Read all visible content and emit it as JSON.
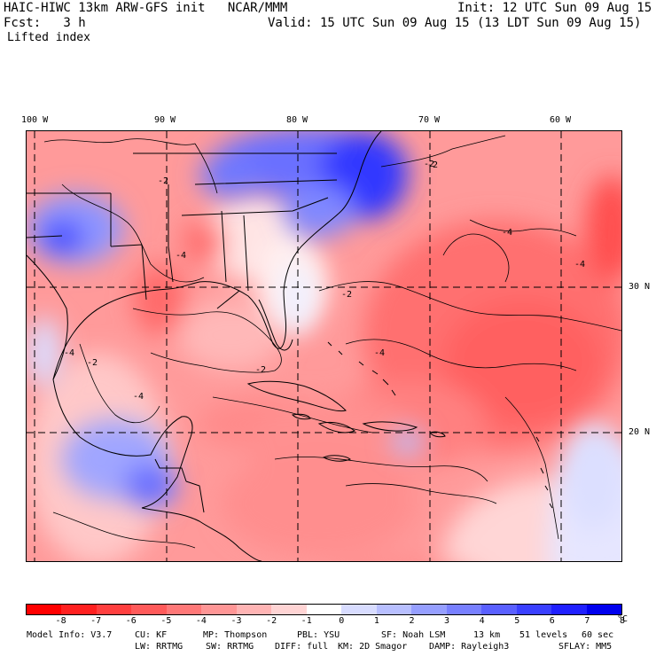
{
  "header": {
    "title_left": "HAIC-HIWC 13km ARW-GFS init   NCAR/MMM",
    "init": "Init: 12 UTC Sun 09 Aug 15",
    "fcst": "Fcst:   3 h",
    "valid": "Valid: 15 UTC Sun 09 Aug 15 (13 LDT Sun 09 Aug 15)",
    "field": "Lifted index"
  },
  "longitude_labels": [
    "100 W",
    "90 W",
    "80 W",
    "70 W",
    "60 W"
  ],
  "latitude_labels": [
    "30 N",
    "20 N"
  ],
  "contour_labels": [
    "-2",
    "-4",
    "-2",
    "-4",
    "-2",
    "-2",
    "-4",
    "-4",
    "-2",
    "-4",
    "-2",
    "-4"
  ],
  "colorbar": {
    "labels": [
      "-8",
      "-7",
      "-6",
      "-5",
      "-4",
      "-3",
      "-2",
      "-1",
      "0",
      "1",
      "2",
      "3",
      "4",
      "5",
      "6",
      "7",
      "8"
    ],
    "unit": "°C",
    "colors": [
      "#ff0000",
      "#ff2020",
      "#ff3f3f",
      "#ff5a5a",
      "#ff7878",
      "#ff9696",
      "#ffb4b4",
      "#ffd4d4",
      "#ffffff",
      "#d8dcff",
      "#b8bfff",
      "#969fff",
      "#7880ff",
      "#5a60ff",
      "#3a40ff",
      "#2020ff",
      "#0000ee"
    ]
  },
  "model_info": {
    "row1": [
      "Model Info: V3.7",
      "CU: KF",
      "MP: Thompson",
      "PBL: YSU",
      "SF: Noah LSM",
      "13 km",
      "51 levels",
      "60 sec"
    ],
    "row2": [
      "LW: RRTMG",
      "SW: RRTMG",
      "DIFF: full",
      "KM: 2D Smagor",
      "DAMP: Rayleigh3",
      "SFLAY: MM5"
    ]
  }
}
